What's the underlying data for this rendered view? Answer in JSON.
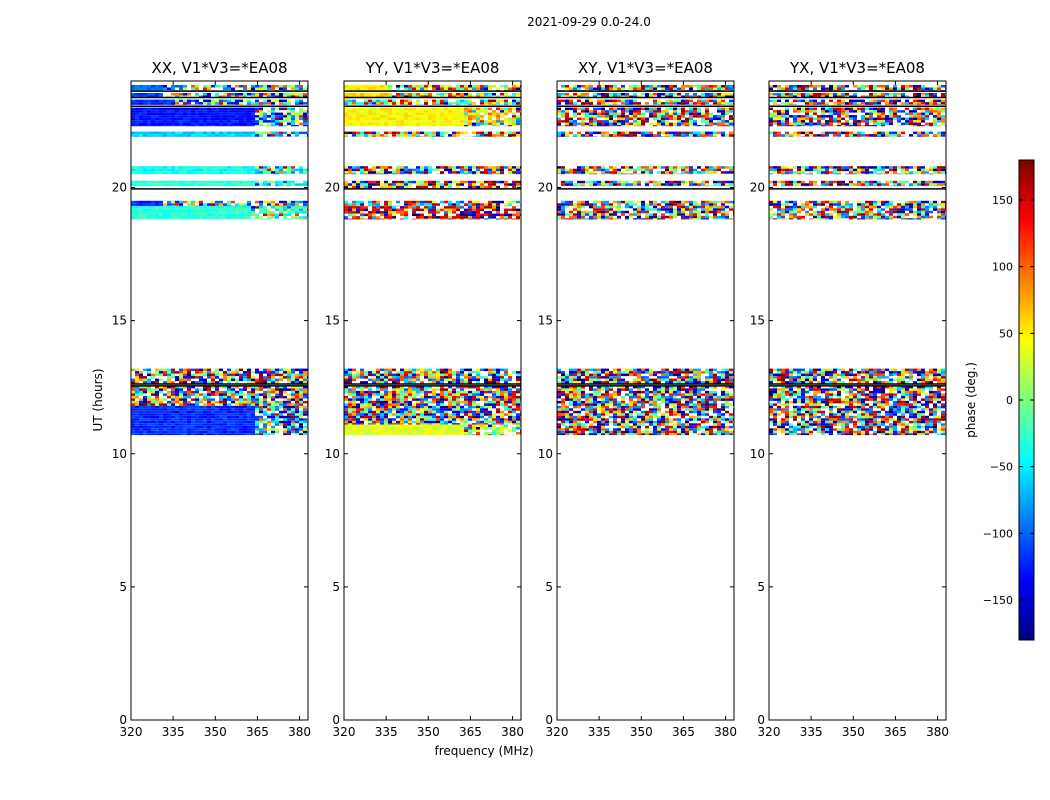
{
  "figure": {
    "title": "2021-09-29 0.0-24.0",
    "xlabel": "frequency (MHz)",
    "ylabel": "UT (hours)"
  },
  "chart_data": {
    "type": "heatmap",
    "suptitle": "2021-09-29 0.0-24.0",
    "xlabel": "frequency (MHz)",
    "ylabel": "UT (hours)",
    "xlim": [
      320,
      383
    ],
    "ylim": [
      0,
      24
    ],
    "x_ticks": [
      320,
      335,
      350,
      365,
      380
    ],
    "y_ticks": [
      0,
      5,
      10,
      15,
      20
    ],
    "panels": [
      {
        "title": "XX, V1*V3=*EA08",
        "segments": [
          {
            "t0": 10.7,
            "t1": 11.8,
            "f_coherent_end": 364,
            "phase": [
              -120,
              -70,
              -170,
              20,
              -40
            ]
          },
          {
            "t0": 11.8,
            "t1": 12.55,
            "f_coherent_end": 320,
            "phase": [
              0,
              90,
              -90,
              160,
              -160
            ]
          },
          {
            "t0": 12.6,
            "t1": 13.2,
            "f_coherent_end": 320,
            "phase": [
              0,
              90,
              -90,
              160,
              -160
            ]
          },
          {
            "t0": 18.8,
            "t1": 19.3,
            "f_coherent_end": 362,
            "phase": [
              -30,
              -20,
              -40,
              10,
              -10
            ]
          },
          {
            "t0": 19.3,
            "t1": 19.5,
            "f_coherent_end": 330,
            "phase": [
              -120,
              -80,
              40,
              -20,
              100
            ]
          },
          {
            "t0": 20.05,
            "t1": 20.25,
            "f_coherent_end": 364,
            "phase": [
              -30,
              -40,
              -20,
              5,
              -60
            ]
          },
          {
            "t0": 20.5,
            "t1": 20.8,
            "f_coherent_end": 364,
            "phase": [
              -40,
              -30,
              -50,
              -10,
              -70
            ]
          },
          {
            "t0": 21.9,
            "t1": 22.1,
            "f_coherent_end": 364,
            "phase": [
              -60,
              -40,
              -80,
              0,
              -120
            ]
          },
          {
            "t0": 22.3,
            "t1": 23.0,
            "f_coherent_end": 364,
            "phase": [
              -130,
              -110,
              -160,
              -60,
              10
            ]
          },
          {
            "t0": 23.1,
            "t1": 23.3,
            "f_coherent_end": 335,
            "phase": [
              -120,
              -90,
              -150,
              30,
              -40
            ]
          },
          {
            "t0": 23.4,
            "t1": 23.55,
            "f_coherent_end": 330,
            "phase": [
              -110,
              -60,
              40,
              -150,
              100
            ]
          },
          {
            "t0": 23.65,
            "t1": 23.85,
            "f_coherent_end": 330,
            "phase": [
              -100,
              -60,
              20,
              -140,
              90
            ]
          }
        ]
      },
      {
        "title": "YY, V1*V3=*EA08",
        "segments": [
          {
            "t0": 10.7,
            "t1": 11.1,
            "f_coherent_end": 362,
            "phase": [
              35,
              20,
              50,
              -20,
              10
            ]
          },
          {
            "t0": 11.1,
            "t1": 11.8,
            "f_coherent_end": 320,
            "phase": [
              0,
              90,
              -90,
              160,
              -160
            ]
          },
          {
            "t0": 11.8,
            "t1": 12.55,
            "f_coherent_end": 320,
            "phase": [
              0,
              90,
              -90,
              160,
              -160
            ]
          },
          {
            "t0": 12.6,
            "t1": 13.2,
            "f_coherent_end": 320,
            "phase": [
              0,
              90,
              -90,
              160,
              -160
            ]
          },
          {
            "t0": 18.8,
            "t1": 19.3,
            "f_coherent_end": 320,
            "phase": [
              130,
              150,
              90,
              170,
              -160
            ]
          },
          {
            "t0": 19.3,
            "t1": 19.5,
            "f_coherent_end": 320,
            "phase": [
              20,
              120,
              -60,
              160,
              -140
            ]
          },
          {
            "t0": 19.95,
            "t1": 20.25,
            "f_coherent_end": 320,
            "phase": [
              130,
              100,
              170,
              40,
              -170
            ]
          },
          {
            "t0": 20.5,
            "t1": 20.8,
            "f_coherent_end": 320,
            "phase": [
              0,
              90,
              -90,
              160,
              -160
            ]
          },
          {
            "t0": 21.9,
            "t1": 22.1,
            "f_coherent_end": 320,
            "phase": [
              120,
              60,
              -30,
              170,
              0
            ]
          },
          {
            "t0": 22.3,
            "t1": 23.0,
            "f_coherent_end": 362,
            "phase": [
              45,
              35,
              60,
              10,
              80
            ]
          },
          {
            "t0": 23.1,
            "t1": 23.3,
            "f_coherent_end": 320,
            "phase": [
              40,
              120,
              -60,
              160,
              0
            ]
          },
          {
            "t0": 23.4,
            "t1": 23.55,
            "f_coherent_end": 335,
            "phase": [
              60,
              30,
              120,
              -40,
              10
            ]
          },
          {
            "t0": 23.65,
            "t1": 23.85,
            "f_coherent_end": 335,
            "phase": [
              50,
              20,
              130,
              -60,
              0
            ]
          }
        ]
      },
      {
        "title": "XY, V1*V3=*EA08",
        "segments": [
          {
            "t0": 10.7,
            "t1": 11.8,
            "f_coherent_end": 320,
            "phase": [
              0,
              90,
              -90,
              160,
              -160
            ]
          },
          {
            "t0": 11.8,
            "t1": 12.55,
            "f_coherent_end": 320,
            "phase": [
              0,
              90,
              -90,
              160,
              -160
            ]
          },
          {
            "t0": 12.6,
            "t1": 13.2,
            "f_coherent_end": 320,
            "phase": [
              0,
              90,
              -90,
              160,
              -160
            ]
          },
          {
            "t0": 18.8,
            "t1": 19.5,
            "f_coherent_end": 320,
            "phase": [
              0,
              90,
              -90,
              160,
              -160
            ]
          },
          {
            "t0": 20.05,
            "t1": 20.25,
            "f_coherent_end": 320,
            "phase": [
              0,
              90,
              -90,
              160,
              -160
            ]
          },
          {
            "t0": 20.5,
            "t1": 20.8,
            "f_coherent_end": 320,
            "phase": [
              0,
              90,
              -90,
              160,
              -160
            ]
          },
          {
            "t0": 21.9,
            "t1": 22.1,
            "f_coherent_end": 320,
            "phase": [
              0,
              90,
              -90,
              160,
              -160
            ]
          },
          {
            "t0": 22.3,
            "t1": 23.0,
            "f_coherent_end": 320,
            "phase": [
              0,
              90,
              -90,
              160,
              -160
            ]
          },
          {
            "t0": 23.1,
            "t1": 23.3,
            "f_coherent_end": 320,
            "phase": [
              0,
              90,
              -90,
              160,
              -160
            ]
          },
          {
            "t0": 23.4,
            "t1": 23.55,
            "f_coherent_end": 320,
            "phase": [
              0,
              90,
              -90,
              160,
              -160
            ]
          },
          {
            "t0": 23.65,
            "t1": 23.85,
            "f_coherent_end": 320,
            "phase": [
              0,
              90,
              -90,
              160,
              -160
            ]
          }
        ]
      },
      {
        "title": "YX, V1*V3=*EA08",
        "segments": [
          {
            "t0": 10.7,
            "t1": 11.8,
            "f_coherent_end": 320,
            "phase": [
              0,
              90,
              -90,
              160,
              -160
            ]
          },
          {
            "t0": 11.8,
            "t1": 12.55,
            "f_coherent_end": 320,
            "phase": [
              0,
              90,
              -90,
              160,
              -160
            ]
          },
          {
            "t0": 12.6,
            "t1": 13.2,
            "f_coherent_end": 320,
            "phase": [
              0,
              90,
              -90,
              160,
              -160
            ]
          },
          {
            "t0": 18.8,
            "t1": 19.5,
            "f_coherent_end": 320,
            "phase": [
              0,
              90,
              -90,
              160,
              -160
            ]
          },
          {
            "t0": 20.05,
            "t1": 20.25,
            "f_coherent_end": 320,
            "phase": [
              0,
              90,
              -90,
              160,
              -160
            ]
          },
          {
            "t0": 20.5,
            "t1": 20.8,
            "f_coherent_end": 320,
            "phase": [
              0,
              90,
              -90,
              160,
              -160
            ]
          },
          {
            "t0": 21.9,
            "t1": 22.1,
            "f_coherent_end": 320,
            "phase": [
              0,
              90,
              -90,
              160,
              -160
            ]
          },
          {
            "t0": 22.3,
            "t1": 23.0,
            "f_coherent_end": 320,
            "phase": [
              0,
              90,
              -90,
              160,
              -160
            ]
          },
          {
            "t0": 23.1,
            "t1": 23.3,
            "f_coherent_end": 320,
            "phase": [
              0,
              90,
              -90,
              160,
              -160
            ]
          },
          {
            "t0": 23.4,
            "t1": 23.55,
            "f_coherent_end": 320,
            "phase": [
              0,
              90,
              -90,
              160,
              -160
            ]
          },
          {
            "t0": 23.65,
            "t1": 23.85,
            "f_coherent_end": 320,
            "phase": [
              0,
              90,
              -90,
              160,
              -160
            ]
          }
        ]
      }
    ],
    "black_lines_ut": [
      12.55,
      12.62,
      19.95,
      23.05,
      23.38,
      23.62
    ],
    "colorbar": {
      "label": "phase (deg.)",
      "range": [
        -180,
        180
      ],
      "ticks": [
        -150,
        -100,
        -50,
        0,
        50,
        100,
        150
      ],
      "colormap": "jet",
      "colormap_stops": [
        "#00007f",
        "#0000ff",
        "#007fff",
        "#00ffff",
        "#7fff7f",
        "#ffff00",
        "#ff7f00",
        "#ff0000",
        "#7f0000"
      ]
    }
  }
}
